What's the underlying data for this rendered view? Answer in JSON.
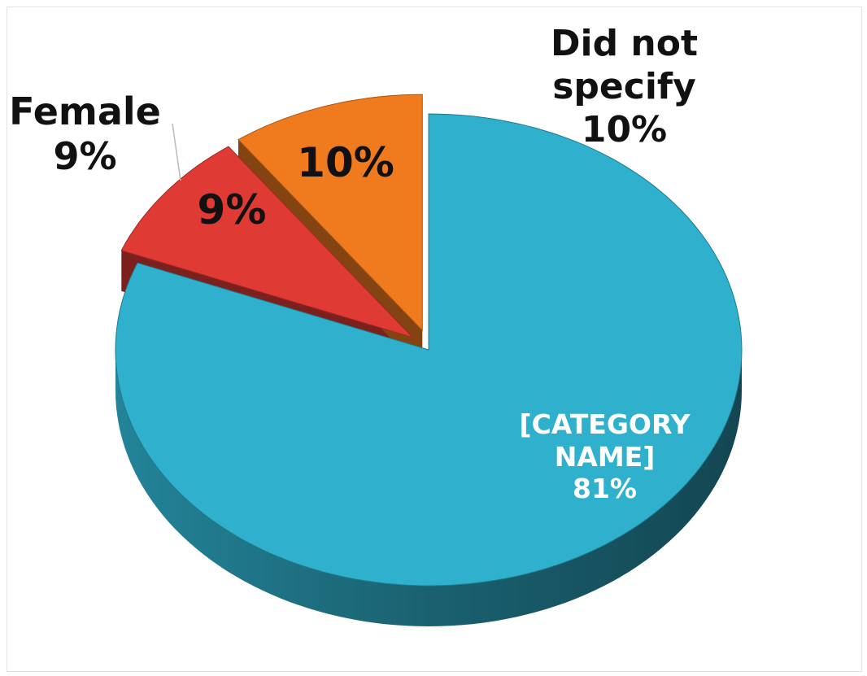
{
  "chart_data": {
    "type": "pie",
    "categories": [
      "[CATEGORY NAME]",
      "Female",
      "Did not specify"
    ],
    "values": [
      81,
      9,
      10
    ],
    "value_labels": [
      "81%",
      "9%",
      "10%"
    ],
    "colors": [
      "#2fb0cc",
      "#e03a35",
      "#f07b1f"
    ],
    "start_angle": 0,
    "direction": "clockwise",
    "exploded": [
      false,
      true,
      true
    ]
  }
}
